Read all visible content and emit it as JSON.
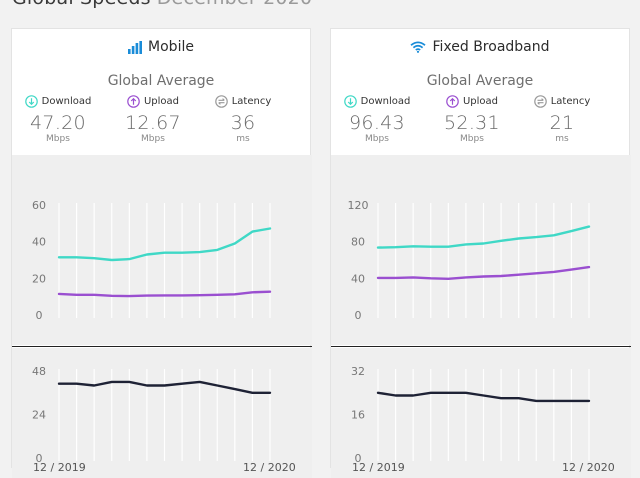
{
  "page": {
    "heading": "Global Speeds",
    "heading_sub": "December 2020"
  },
  "colors": {
    "download": "#3fd8c6",
    "upload": "#9a4fd0",
    "latency": "#1e2235",
    "latency_icon": "#9a9a9a",
    "accent_blue": "#1a8cd8"
  },
  "panels": [
    {
      "title": "Mobile",
      "icon": "signal-bars-icon",
      "avg_title": "Global Average",
      "metrics": {
        "download": {
          "label": "Download",
          "value": "47.20",
          "unit": "Mbps",
          "icon": "download-arrow-icon"
        },
        "upload": {
          "label": "Upload",
          "value": "12.67",
          "unit": "Mbps",
          "icon": "upload-arrow-icon"
        },
        "latency": {
          "label": "Latency",
          "value": "36",
          "unit": "ms",
          "icon": "latency-icon"
        }
      },
      "start_label": "12 / 2019",
      "end_label": "12 / 2020"
    },
    {
      "title": "Fixed Broadband",
      "icon": "wifi-icon",
      "avg_title": "Global Average",
      "metrics": {
        "download": {
          "label": "Download",
          "value": "96.43",
          "unit": "Mbps",
          "icon": "download-arrow-icon"
        },
        "upload": {
          "label": "Upload",
          "value": "52.31",
          "unit": "Mbps",
          "icon": "upload-arrow-icon"
        },
        "latency": {
          "label": "Latency",
          "value": "21",
          "unit": "ms",
          "icon": "latency-icon"
        }
      },
      "start_label": "12 / 2019",
      "end_label": "12 / 2020"
    }
  ],
  "chart_data": [
    {
      "type": "line",
      "panel": "Mobile",
      "x": [
        "12/2019",
        "01/2020",
        "02/2020",
        "03/2020",
        "04/2020",
        "05/2020",
        "06/2020",
        "07/2020",
        "08/2020",
        "09/2020",
        "10/2020",
        "11/2020",
        "12/2020"
      ],
      "ylim": [
        0,
        60
      ],
      "yticks": [
        "60",
        "40",
        "20",
        "0"
      ],
      "series": [
        {
          "key": "download",
          "values": [
            31.5,
            31.5,
            31.0,
            30.0,
            30.5,
            33.0,
            34.0,
            34.0,
            34.3,
            35.5,
            39.0,
            45.5,
            47.2
          ]
        },
        {
          "key": "upload",
          "values": [
            11.5,
            11.0,
            11.0,
            10.5,
            10.3,
            10.6,
            10.7,
            10.7,
            10.8,
            11.0,
            11.3,
            12.4,
            12.7
          ]
        }
      ]
    },
    {
      "type": "line",
      "panel": "Mobile",
      "x": [
        "12/2019",
        "01/2020",
        "02/2020",
        "03/2020",
        "04/2020",
        "05/2020",
        "06/2020",
        "07/2020",
        "08/2020",
        "09/2020",
        "10/2020",
        "11/2020",
        "12/2020"
      ],
      "ylim": [
        0,
        48
      ],
      "yticks": [
        "48",
        "24",
        "0"
      ],
      "series": [
        {
          "key": "latency",
          "values": [
            41,
            41,
            40,
            42,
            42,
            40,
            40,
            41,
            42,
            40,
            38,
            36,
            36
          ]
        }
      ]
    },
    {
      "type": "line",
      "panel": "Fixed Broadband",
      "x": [
        "12/2019",
        "01/2020",
        "02/2020",
        "03/2020",
        "04/2020",
        "05/2020",
        "06/2020",
        "07/2020",
        "08/2020",
        "09/2020",
        "10/2020",
        "11/2020",
        "12/2020"
      ],
      "ylim": [
        0,
        120
      ],
      "yticks": [
        "120",
        "80",
        "40",
        "0"
      ],
      "series": [
        {
          "key": "download",
          "values": [
            73.5,
            74,
            75,
            74.5,
            74.5,
            77,
            78,
            81,
            83.5,
            85,
            87,
            91.5,
            96.4
          ]
        },
        {
          "key": "upload",
          "values": [
            40.5,
            40.5,
            41,
            40,
            39.5,
            41,
            42,
            42.5,
            44,
            45.5,
            47,
            49.5,
            52.3
          ]
        }
      ]
    },
    {
      "type": "line",
      "panel": "Fixed Broadband",
      "x": [
        "12/2019",
        "01/2020",
        "02/2020",
        "03/2020",
        "04/2020",
        "05/2020",
        "06/2020",
        "07/2020",
        "08/2020",
        "09/2020",
        "10/2020",
        "11/2020",
        "12/2020"
      ],
      "ylim": [
        0,
        32
      ],
      "yticks": [
        "32",
        "16",
        "0"
      ],
      "series": [
        {
          "key": "latency",
          "values": [
            24,
            23,
            23,
            24,
            24,
            24,
            23,
            22,
            22,
            21,
            21,
            21,
            21
          ]
        }
      ]
    }
  ]
}
